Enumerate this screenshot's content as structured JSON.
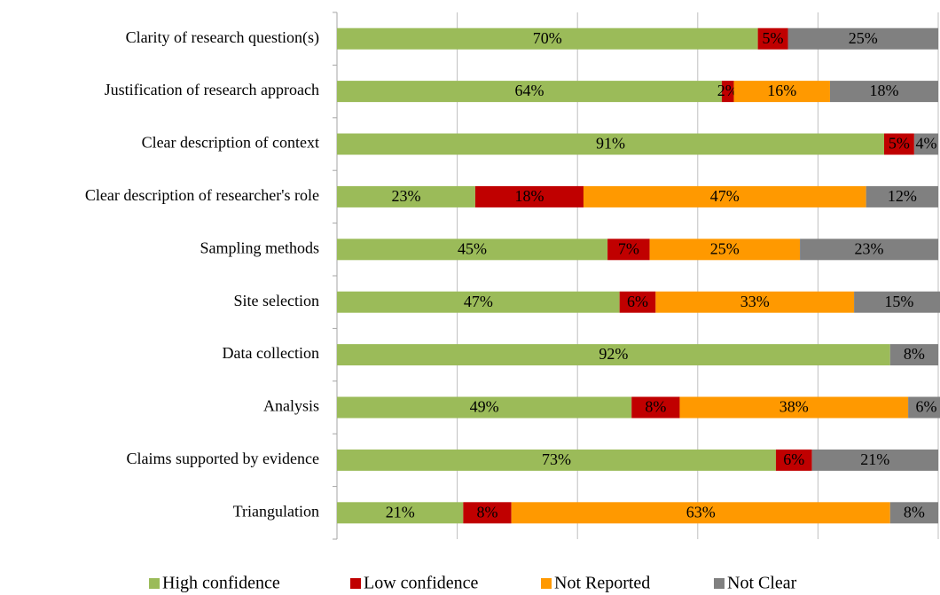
{
  "chart_data": {
    "type": "stacked_barh",
    "categories": [
      "Clarity of research question(s)",
      "Justification of research approach",
      "Clear description of context",
      "Clear description of  researcher's role",
      "Sampling methods",
      "Site selection",
      "Data collection",
      "Analysis",
      "Claims supported by evidence",
      "Triangulation"
    ],
    "series": [
      {
        "name": "High confidence",
        "color": "#9bbb59",
        "values": [
          70,
          64,
          91,
          23,
          45,
          47,
          92,
          49,
          73,
          21
        ],
        "value_labels": [
          "70%",
          "64%",
          "91%",
          "23%",
          "45%",
          "47%",
          "92%",
          "49%",
          "73%",
          "21%"
        ]
      },
      {
        "name": "Low confidence",
        "color": "#c00000",
        "values": [
          5,
          2,
          5,
          18,
          7,
          6,
          null,
          8,
          6,
          8
        ],
        "value_labels": [
          "5%",
          "2%",
          "5%",
          "18%",
          "7%",
          "6%",
          null,
          "8%",
          "6%",
          "8%"
        ]
      },
      {
        "name": "Not Reported",
        "color": "#ff9900",
        "values": [
          null,
          16,
          null,
          47,
          25,
          33,
          null,
          38,
          null,
          63
        ],
        "value_labels": [
          null,
          "16%",
          null,
          "47%",
          "25%",
          "33%",
          null,
          "38%",
          null,
          "63%"
        ]
      },
      {
        "name": "Not Clear",
        "color": "#808080",
        "values": [
          25,
          18,
          4,
          12,
          23,
          15,
          8,
          6,
          21,
          8
        ],
        "value_labels": [
          "25%",
          "18%",
          "4%",
          "12%",
          "23%",
          "15%",
          "8%",
          "6%",
          "21%",
          "8%"
        ]
      }
    ],
    "xlim": [
      0,
      100
    ],
    "xticks": [
      0,
      20,
      40,
      60,
      80,
      100
    ],
    "grid": true,
    "legend": "bottom"
  }
}
